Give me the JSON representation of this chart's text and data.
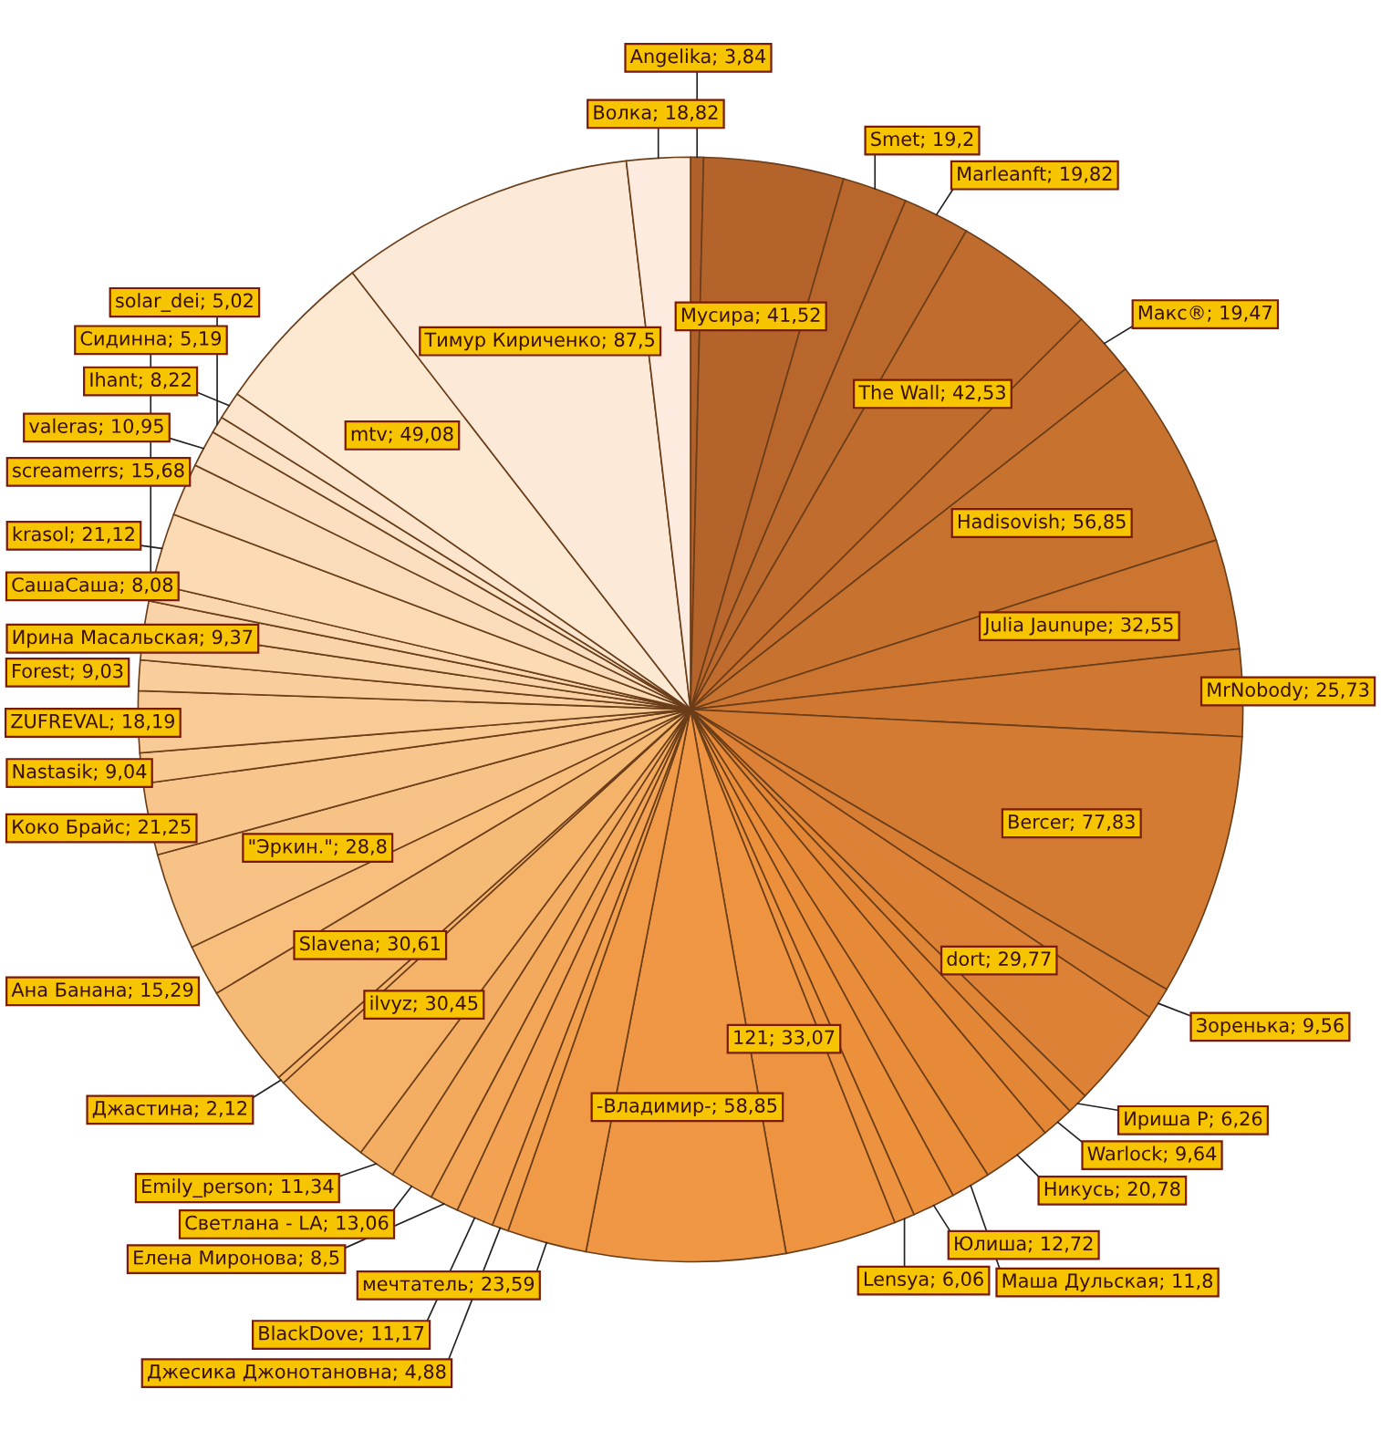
{
  "chart_data": {
    "type": "pie",
    "categories": [
      "Angelika",
      "Мусира",
      "Smet",
      "Marleanft",
      "The Wall",
      "Макс®",
      "Hadisovish",
      "Julia Jaunupe",
      "MrNobody",
      "Bercer",
      "Зоренька",
      "dort",
      "Ириша Р",
      "Warlock",
      "Никусь",
      "Маша Дульская",
      "Юлиша",
      "Lensya",
      "121",
      "-Владимир-",
      "мечтатель",
      "Джесика Джонотановна",
      "BlackDove",
      "Елена Миронова",
      "Светлана - LA",
      "Emily_person",
      "ilvyz",
      "Джастина",
      "Slavena",
      "Ана Банана",
      "\"Эркин.\"",
      "Коко Брайс",
      "Nastasik",
      "ZUFREVAL",
      "Forest",
      "Ирина Масальская",
      "СашаСаша",
      "Сидинна",
      "krasol",
      "screamerrs",
      "valeras",
      "solar_dei",
      "Ihant",
      "mtv",
      "Тимур Кириченко",
      "Волка"
    ],
    "values": [
      3.84,
      41.52,
      19.2,
      19.82,
      42.53,
      19.47,
      56.85,
      32.55,
      25.73,
      77.83,
      9.56,
      29.77,
      6.26,
      9.64,
      20.78,
      11.8,
      12.72,
      6.06,
      33.07,
      58.85,
      23.59,
      4.88,
      11.17,
      8.5,
      13.06,
      11.34,
      30.45,
      2.12,
      30.61,
      15.29,
      28.8,
      21.25,
      9.04,
      18.19,
      9.03,
      9.37,
      8.08,
      5.19,
      21.12,
      15.68,
      10.95,
      5.02,
      8.22,
      49.08,
      87.5,
      18.82
    ],
    "value_labels": [
      "3,84",
      "41,52",
      "19,2",
      "19,82",
      "42,53",
      "19,47",
      "56,85",
      "32,55",
      "25,73",
      "77,83",
      "9,56",
      "29,77",
      "6,26",
      "9,64",
      "20,78",
      "11,8",
      "12,72",
      "6,06",
      "33,07",
      "58,85",
      "23,59",
      "4,88",
      "11,17",
      "8,5",
      "13,06",
      "11,34",
      "30,45",
      "2,12",
      "30,61",
      "15,29",
      "28,8",
      "21,25",
      "9,04",
      "18,19",
      "9,03",
      "9,37",
      "8,08",
      "5,19",
      "21,12",
      "15,68",
      "10,95",
      "5,02",
      "8,22",
      "49,08",
      "87,5",
      "18,82"
    ],
    "colors": [
      "#b0602a",
      "#b4632b",
      "#b8662c",
      "#bc692d",
      "#c06c2e",
      "#c46f2f",
      "#c87230",
      "#cc7531",
      "#d07832",
      "#d47b33",
      "#d87e34",
      "#dc8135",
      "#e08436",
      "#e38737",
      "#e68a38",
      "#e98d3a",
      "#ec903c",
      "#ed923e",
      "#ee9440",
      "#ef9744",
      "#f09a48",
      "#f19e4d",
      "#f2a252",
      "#f3a657",
      "#f3aa5d",
      "#f4ae63",
      "#f5b269",
      "#f6b670",
      "#f6ba77",
      "#f7be7e",
      "#f7c285",
      "#f8c68c",
      "#f8c990",
      "#f8cb96",
      "#f9ce9c",
      "#f9d1a2",
      "#fad4a8",
      "#fad7ae",
      "#fbdab4",
      "#fbdcba",
      "#fbdfc0",
      "#fce2c6",
      "#fce5cc",
      "#fde8d2",
      "#fde9d8",
      "#fdebe0"
    ]
  }
}
